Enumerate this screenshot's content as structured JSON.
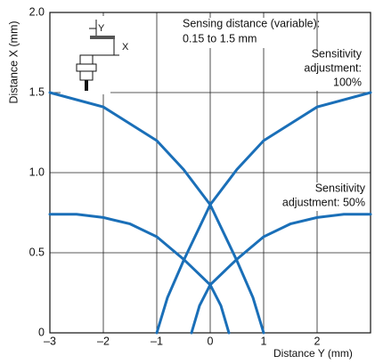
{
  "chart_data": {
    "type": "line",
    "x_label": "Distance Y (mm)",
    "y_label": "Distance X (mm)",
    "annotations": [
      "Sensing distance (variable):",
      "0.15 to 1.5 mm",
      "Sensitivity",
      "adjustment:",
      "100%",
      "Sensitivity",
      "adjustment: 50%"
    ],
    "sensor_labels": [
      "Y",
      "X"
    ],
    "xlim": [
      -3,
      3
    ],
    "ylim": [
      0,
      2
    ],
    "xticks": [
      {
        "value": -3,
        "label": "–3"
      },
      {
        "value": -2,
        "label": "–2"
      },
      {
        "value": -1,
        "label": "–1"
      },
      0,
      1,
      2
    ],
    "yticks": [
      0,
      {
        "value": 0.5,
        "label": "0.5"
      },
      {
        "value": 1,
        "label": "1.0"
      },
      {
        "value": 1.5,
        "label": "1.5"
      },
      {
        "value": 2,
        "label": "2.0"
      }
    ],
    "grid": true,
    "series": [
      {
        "color": "#1a6fb8",
        "x": [
          -3,
          -2,
          -1,
          -0.5,
          0,
          0.5,
          0.8,
          1
        ],
        "values": [
          1.5,
          1.41,
          1.2,
          1.02,
          0.8,
          0.45,
          0.22,
          0
        ]
      },
      {
        "color": "#1a6fb8",
        "x": [
          -1,
          -0.8,
          -0.5,
          0,
          0.5,
          1,
          2,
          3
        ],
        "values": [
          0,
          0.22,
          0.45,
          0.8,
          1.02,
          1.2,
          1.41,
          1.5
        ]
      },
      {
        "color": "#1a6fb8",
        "x": [
          -3,
          -2.5,
          -2,
          -1.5,
          -1,
          -0.5,
          0,
          0.2,
          0.35
        ],
        "values": [
          0.74,
          0.74,
          0.72,
          0.68,
          0.6,
          0.46,
          0.3,
          0.17,
          0
        ]
      },
      {
        "color": "#1a6fb8",
        "x": [
          -0.35,
          -0.2,
          0,
          0.5,
          1,
          1.5,
          2,
          2.5,
          3
        ],
        "values": [
          0,
          0.17,
          0.3,
          0.46,
          0.6,
          0.68,
          0.72,
          0.74,
          0.74
        ]
      }
    ]
  }
}
